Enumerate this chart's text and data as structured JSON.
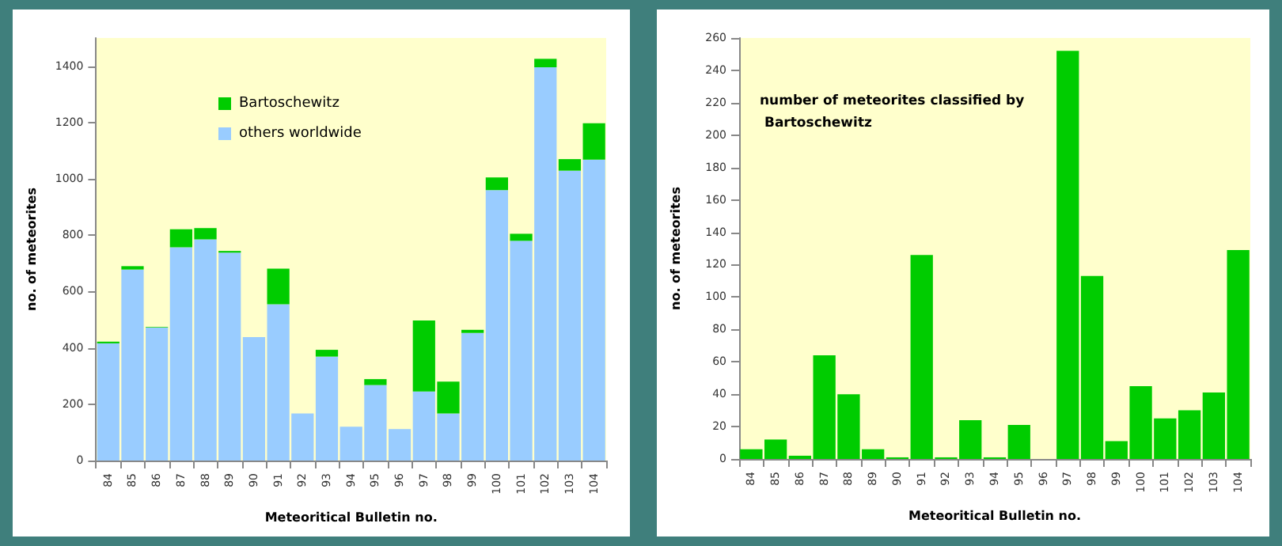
{
  "chart_data": [
    {
      "type": "bar",
      "stacked": true,
      "xlabel": "Meteoritical Bulletin no.",
      "ylabel": "no. of meteorites",
      "categories": [
        "84",
        "85",
        "86",
        "87",
        "88",
        "89",
        "90",
        "91",
        "92",
        "93",
        "94",
        "95",
        "96",
        "97",
        "98",
        "99",
        "100",
        "101",
        "102",
        "103",
        "104"
      ],
      "series": [
        {
          "name": "others worldwide",
          "color": "#99ccff",
          "values": [
            416,
            678,
            472,
            757,
            785,
            738,
            438,
            555,
            167,
            369,
            120,
            268,
            112,
            245,
            167,
            453,
            960,
            780,
            1396,
            1029,
            1068
          ]
        },
        {
          "name": "Bartoschewitz",
          "color": "#00cc00",
          "values": [
            6,
            12,
            2,
            64,
            40,
            6,
            null,
            126,
            null,
            24,
            null,
            21,
            0,
            252,
            113,
            11,
            45,
            25,
            30,
            41,
            129
          ]
        }
      ],
      "ylim": [
        0,
        1500
      ],
      "yticks": [
        0,
        200,
        400,
        600,
        800,
        1000,
        1200,
        1400
      ],
      "grid": false,
      "legend": "top left"
    },
    {
      "type": "bar",
      "title": "number of meteorites classified by Bartoschewitz",
      "xlabel": "Meteoritical Bulletin no.",
      "ylabel": "no. of meteorites",
      "categories": [
        "84",
        "85",
        "86",
        "87",
        "88",
        "89",
        "90",
        "91",
        "92",
        "93",
        "94",
        "95",
        "96",
        "97",
        "98",
        "99",
        "100",
        "101",
        "102",
        "103",
        "104"
      ],
      "values": [
        6,
        12,
        2,
        64,
        40,
        6,
        1,
        126,
        1,
        24,
        1,
        21,
        0,
        252,
        113,
        11,
        45,
        25,
        30,
        41,
        129
      ],
      "color": "#00cc00",
      "ylim": [
        0,
        260
      ],
      "yticks": [
        0,
        20,
        40,
        60,
        80,
        100,
        120,
        140,
        160,
        180,
        200,
        220,
        240,
        260
      ],
      "grid": false,
      "legend": false
    }
  ]
}
